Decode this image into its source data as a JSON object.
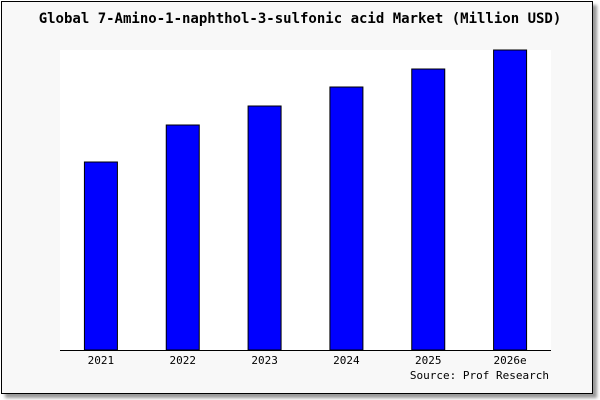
{
  "chart_data": {
    "type": "bar",
    "title": "Global 7-Amino-1-naphthol-3-sulfonic acid Market (Million USD)",
    "categories": [
      "2021",
      "2022",
      "2023",
      "2024",
      "2025",
      "2026e"
    ],
    "values": [
      188,
      225,
      244,
      263,
      281,
      300
    ],
    "ylim": [
      0,
      300
    ],
    "xlabel": "",
    "ylabel": "",
    "grid": false,
    "bar_color": "#0000ff",
    "source": "Source: Prof Research"
  }
}
